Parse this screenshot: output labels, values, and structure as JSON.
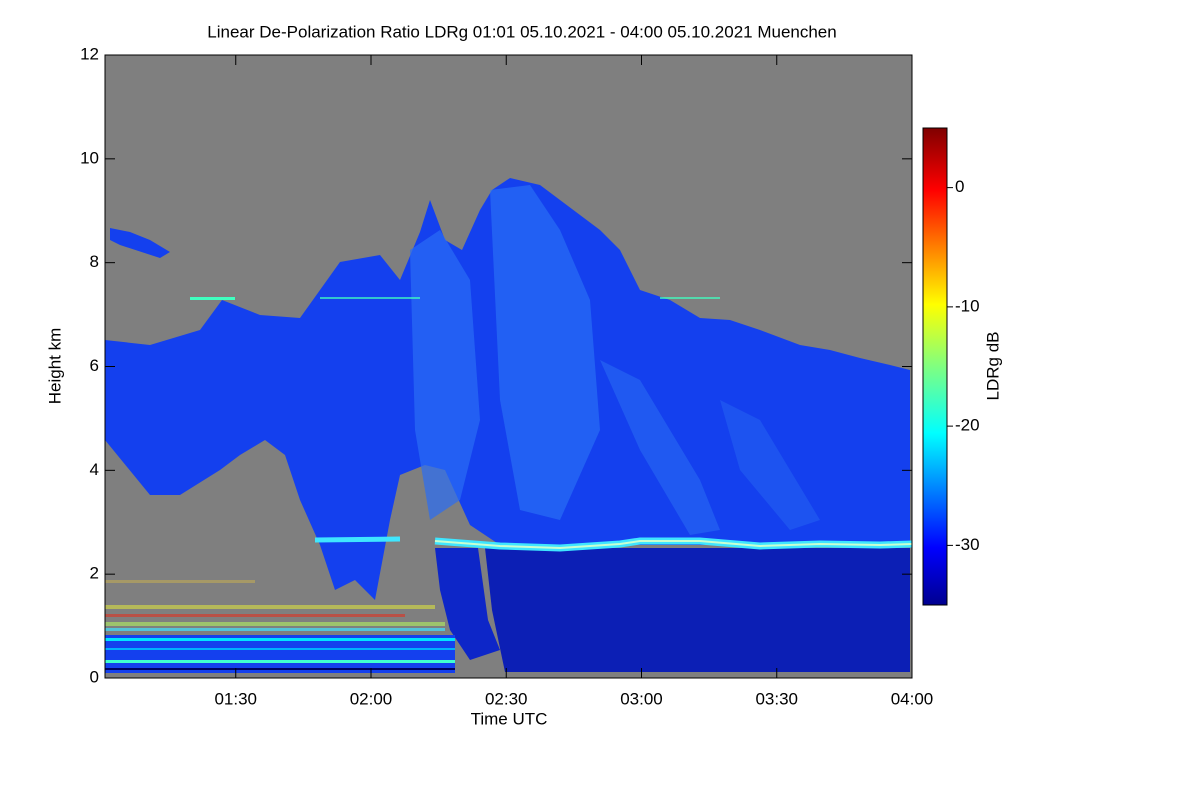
{
  "chart_data": {
    "type": "heatmap",
    "title": "Linear De-Polarization Ratio LDRg   01:01 05.10.2021 - 04:00 05.10.2021 Muenchen",
    "x_label": "Time UTC",
    "y_label": "Height km",
    "xlim": [
      61,
      240
    ],
    "xticks": [
      {
        "value": 90,
        "label": "01:30"
      },
      {
        "value": 120,
        "label": "02:00"
      },
      {
        "value": 150,
        "label": "02:30"
      },
      {
        "value": 180,
        "label": "03:00"
      },
      {
        "value": 210,
        "label": "03:30"
      },
      {
        "value": 240,
        "label": "04:00"
      }
    ],
    "ylim": [
      0,
      12
    ],
    "yticks": [
      0,
      2,
      4,
      6,
      8,
      10,
      12
    ],
    "colorbar": {
      "label": "LDRg dB",
      "lim": [
        -35,
        5
      ],
      "ticks": [
        0,
        -10,
        -20,
        -30
      ]
    }
  }
}
